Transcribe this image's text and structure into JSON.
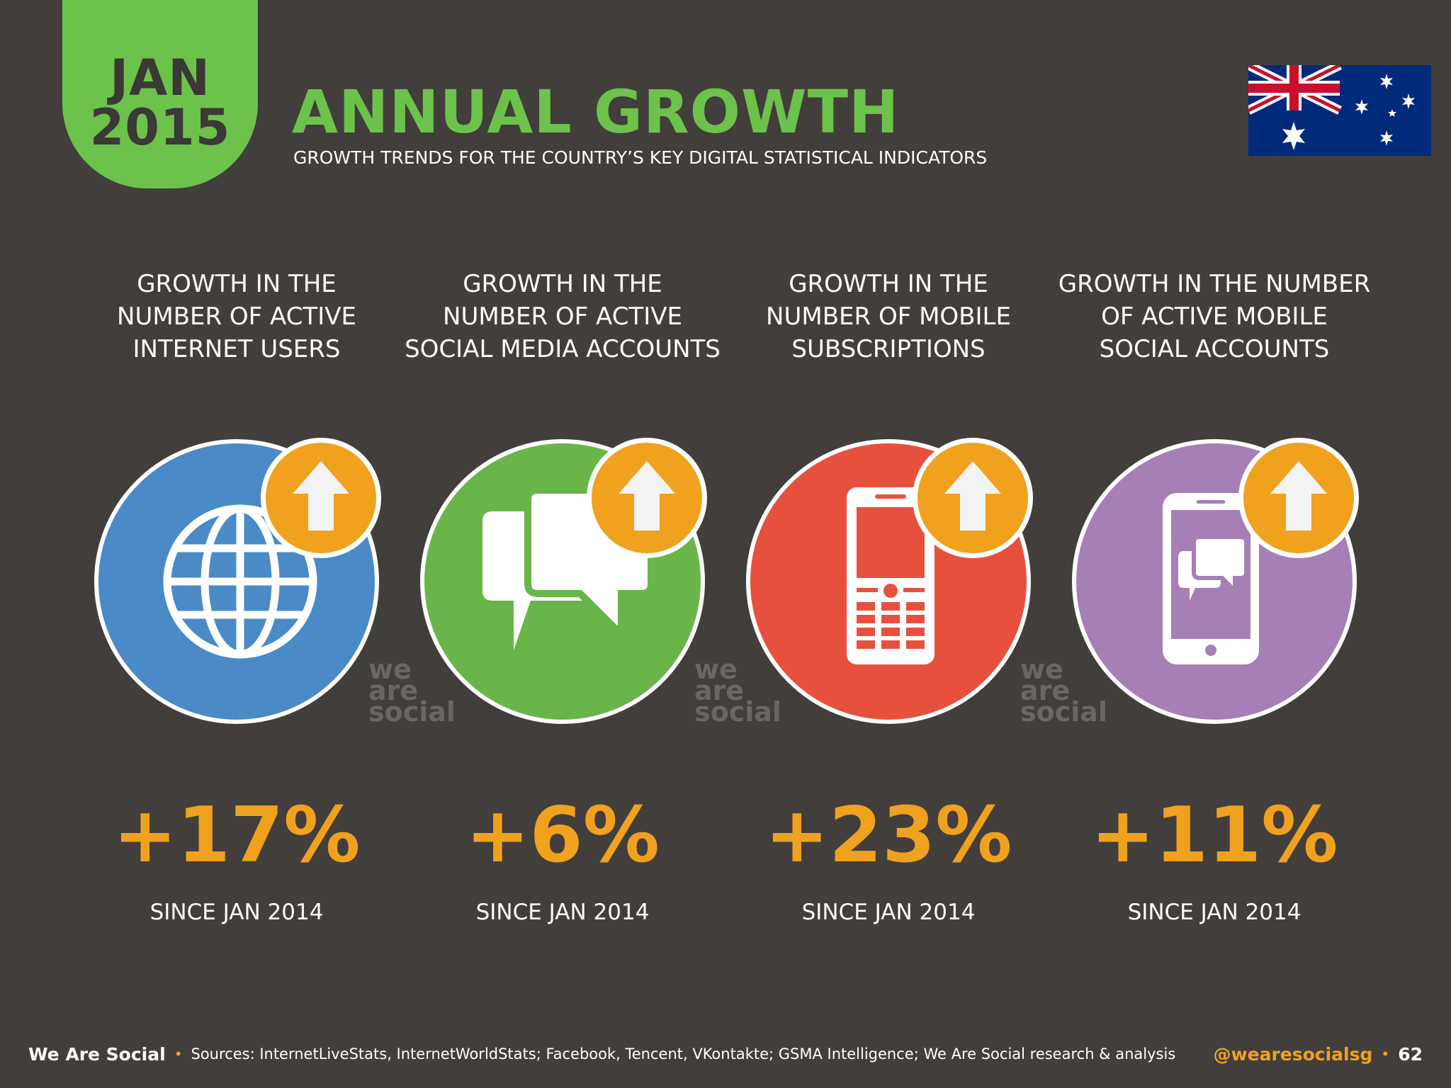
{
  "header": {
    "month": "JAN",
    "year": "2015",
    "title": "ANNUAL GROWTH",
    "subtitle": "GROWTH TRENDS FOR THE COUNTRY’S KEY DIGITAL STATISTICAL INDICATORS",
    "flag_icon": "australia-flag-icon"
  },
  "colors": {
    "background": "#423e3c",
    "accent_green": "#6cc24a",
    "accent_orange": "#f0a11e",
    "blue": "#4a8ac7",
    "green": "#6ab54a",
    "red": "#e8503e",
    "purple": "#a67fb7"
  },
  "stats": [
    {
      "label_lines": [
        "GROWTH IN THE",
        "NUMBER OF ACTIVE",
        "INTERNET USERS"
      ],
      "value": "+17%",
      "since": "SINCE JAN 2014",
      "icon": "globe-icon",
      "color": "#4a8ac7"
    },
    {
      "label_lines": [
        "GROWTH IN THE",
        "NUMBER OF ACTIVE",
        "SOCIAL MEDIA ACCOUNTS"
      ],
      "value": "+6%",
      "since": "SINCE JAN 2014",
      "icon": "chat-bubbles-icon",
      "color": "#6ab54a"
    },
    {
      "label_lines": [
        "GROWTH IN THE",
        "NUMBER OF MOBILE",
        "SUBSCRIPTIONS"
      ],
      "value": "+23%",
      "since": "SINCE JAN 2014",
      "icon": "mobile-phone-icon",
      "color": "#e8503e"
    },
    {
      "label_lines": [
        "GROWTH IN THE NUMBER",
        "OF ACTIVE MOBILE",
        "SOCIAL ACCOUNTS"
      ],
      "value": "+11%",
      "since": "SINCE JAN 2014",
      "icon": "smartphone-chat-icon",
      "color": "#a67fb7"
    }
  ],
  "watermark": [
    "we",
    "are",
    "social"
  ],
  "footer": {
    "brand": "We Are Social",
    "sources": "Sources: InternetLiveStats, InternetWorldStats; Facebook, Tencent, VKontakte; GSMA Intelligence; We Are Social research & analysis",
    "handle": "@wearesocialsg",
    "page": "62"
  }
}
